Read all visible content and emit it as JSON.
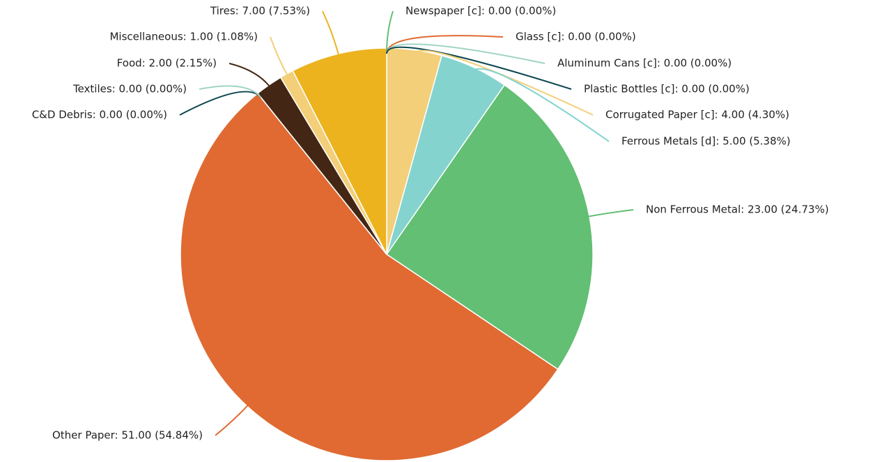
{
  "chart_data": {
    "type": "pie",
    "values": [
      0,
      0,
      0,
      0,
      4,
      5,
      23,
      51,
      0,
      0,
      2,
      1,
      7
    ],
    "value_labels": [
      "Newspaper [c]: 0.00 (0.00%)",
      "Glass [c]: 0.00 (0.00%)",
      "Aluminum Cans [c]: 0.00 (0.00%)",
      "Plastic Bottles [c]: 0.00 (0.00%)",
      "Corrugated Paper [c]: 4.00 (4.30%)",
      "Ferrous Metals [d]: 5.00 (5.38%)",
      "Non Ferrous Metal: 23.00 (24.73%)",
      "Other Paper: 51.00 (54.84%)",
      "C&D Debris: 0.00 (0.00%)",
      "Textiles: 0.00 (0.00%)",
      "Food: 2.00 (2.15%)",
      "Miscellaneous: 1.00 (1.08%)",
      "Tires: 7.00 (7.53%)"
    ],
    "colors": [
      "#62bf73",
      "#e06a32",
      "#9fd4c4",
      "#0b4650",
      "#f3cf7a",
      "#84d3cf",
      "#62bf73",
      "#e06a32",
      "#0b4650",
      "#9fd4c4",
      "#432613",
      "#f3cf7a",
      "#ecb31f"
    ]
  }
}
